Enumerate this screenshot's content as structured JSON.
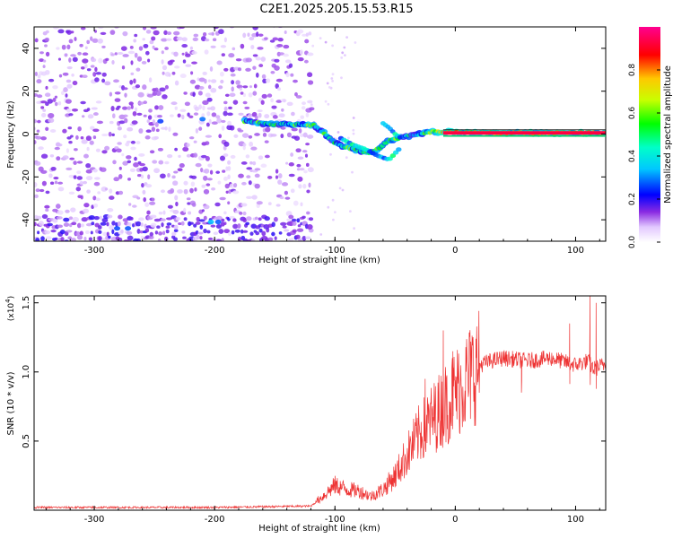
{
  "figure_title": "C2E1.2025.205.15.53.R15",
  "chart_data": [
    {
      "type": "heatmap",
      "description": "Spectrogram: normalized spectral amplitude vs height of straight line and frequency",
      "xlabel": "Height of straight line (km)",
      "ylabel": "Frequency (Hz)",
      "xlim": [
        -350,
        125
      ],
      "ylim": [
        -50,
        50
      ],
      "xticks": [
        -300,
        -200,
        -100,
        0,
        100
      ],
      "yticks": [
        -40,
        -20,
        0,
        20,
        40
      ],
      "xtick_labels": [
        "-300",
        "-200",
        "-100",
        "0",
        "100"
      ],
      "ytick_labels": [
        "-40",
        "-20",
        "0",
        "20",
        "40"
      ],
      "colorbar": {
        "label": "Normalized spectral amplitude",
        "range": [
          0,
          1
        ],
        "ticks": [
          0.0,
          0.2,
          0.4,
          0.6,
          0.8
        ],
        "tick_labels": [
          "0.0",
          "0.2",
          "0.4",
          "0.6",
          "0.8"
        ]
      },
      "noise_region_x": [
        -350,
        -120
      ],
      "signal_track": {
        "x": [
          -175,
          -160,
          -145,
          -130,
          -118,
          -110,
          -100,
          -92,
          -85,
          -78,
          -70,
          -62,
          -55,
          -48,
          -40,
          -30,
          -20,
          -10,
          0,
          20,
          50,
          80,
          110,
          125
        ],
        "y": [
          6,
          5,
          4.5,
          4.5,
          4,
          1,
          -4,
          -6,
          -7,
          -8,
          -9,
          -6,
          -3,
          -2,
          -1,
          0,
          1,
          1,
          1,
          0.5,
          0.5,
          0.5,
          0.5,
          0.5
        ]
      },
      "secondary_track": {
        "x": [
          -95,
          -85,
          -75,
          -65,
          -55,
          -45
        ],
        "y": [
          -2,
          -5,
          -7,
          -10,
          -12,
          -6
        ]
      },
      "upper_branch": {
        "x": [
          -60,
          -55,
          -50,
          -45
        ],
        "y": [
          5,
          3,
          0,
          -2
        ]
      }
    },
    {
      "type": "line",
      "xlabel": "Height of straight line (km)",
      "ylabel": "SNR (10 * v/v)",
      "y_multiplier_label": "(x10",
      "y_multiplier_exp": "4",
      "xlim": [
        -350,
        125
      ],
      "ylim": [
        0,
        1.55
      ],
      "xticks": [
        -300,
        -200,
        -100,
        0,
        100
      ],
      "yticks": [
        0.5,
        1.0,
        1.5
      ],
      "xtick_labels": [
        "-300",
        "-200",
        "-100",
        "0",
        "100"
      ],
      "ytick_labels": [
        "0.5",
        "1.0",
        "1.5"
      ],
      "series": [
        {
          "color": "#ee3333",
          "envelope": {
            "x": [
              -350,
              -200,
              -120,
              -110,
              -100,
              -90,
              -80,
              -70,
              -60,
              -50,
              -40,
              -30,
              -20,
              -10,
              0,
              10,
              20,
              30,
              40,
              60,
              80,
              100,
              110,
              115,
              125
            ],
            "y": [
              0.02,
              0.02,
              0.03,
              0.1,
              0.18,
              0.15,
              0.14,
              0.1,
              0.15,
              0.25,
              0.4,
              0.55,
              0.65,
              0.75,
              0.85,
              0.95,
              1.05,
              1.08,
              1.1,
              1.08,
              1.1,
              1.05,
              1.08,
              1.02,
              1.06
            ]
          },
          "spikes": {
            "x": [
              -25,
              -10,
              -2,
              15,
              55,
              95,
              112,
              117
            ],
            "y": [
              0.95,
              1.3,
              1.15,
              1.15,
              0.85,
              1.35,
              1.55,
              1.5
            ]
          }
        }
      ]
    }
  ]
}
